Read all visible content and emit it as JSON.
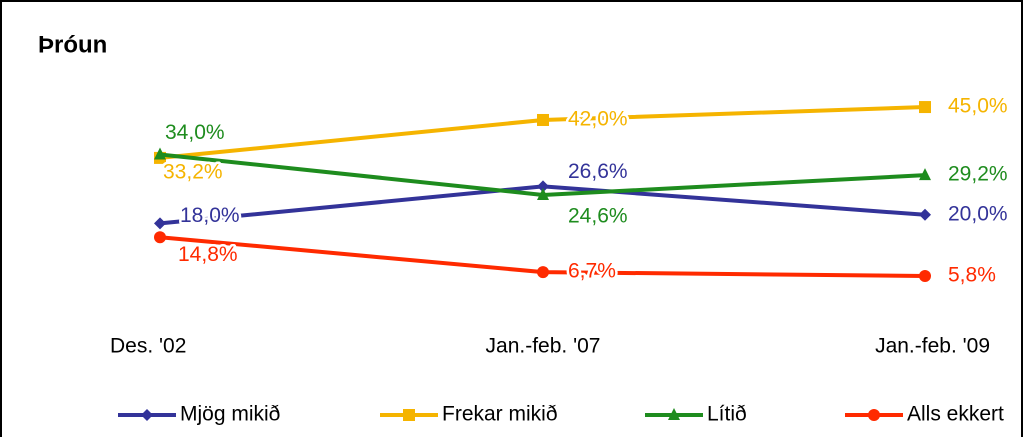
{
  "chart_data": {
    "type": "line",
    "title": "Þróun",
    "categories": [
      "Des. '02",
      "Jan.-feb. '07",
      "Jan.-feb. '09"
    ],
    "series": [
      {
        "name": "Mjög mikið",
        "color": "#333399",
        "marker": "diamond",
        "values": [
          18.0,
          26.6,
          20.0
        ],
        "value_labels": [
          "18,0%",
          "26,6%",
          "20,0%"
        ]
      },
      {
        "name": "Frekar mikið",
        "color": "#F5B400",
        "marker": "square",
        "values": [
          33.2,
          42.0,
          45.0
        ],
        "value_labels": [
          "33,2%",
          "42,0%",
          "45,0%"
        ]
      },
      {
        "name": "Lítið",
        "color": "#1E8C1E",
        "marker": "triangle",
        "values": [
          34.0,
          24.6,
          29.2
        ],
        "value_labels": [
          "34,0%",
          "24,6%",
          "29,2%"
        ]
      },
      {
        "name": "Alls ekkert",
        "color": "#FF2A00",
        "marker": "circle",
        "values": [
          14.8,
          6.7,
          5.8
        ],
        "value_labels": [
          "14,8%",
          "6,7%",
          "5,8%"
        ]
      }
    ],
    "legend": "bottom"
  }
}
